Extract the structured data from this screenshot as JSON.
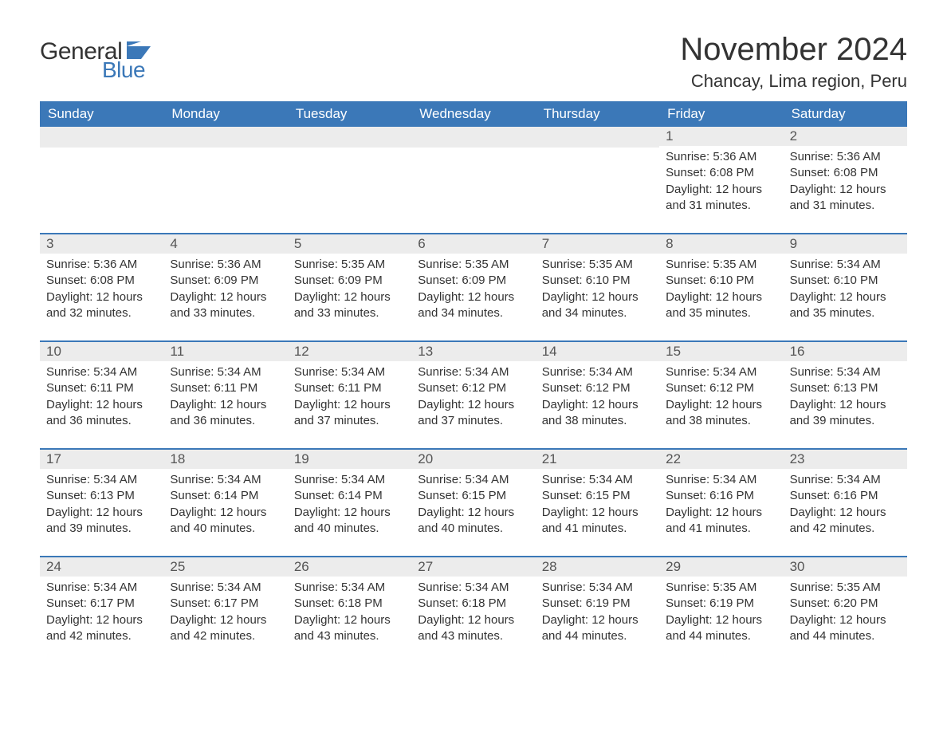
{
  "brand": {
    "part1": "General",
    "part2": "Blue",
    "flag_color": "#3b78b8"
  },
  "title": "November 2024",
  "location": "Chancay, Lima region, Peru",
  "colors": {
    "header_bg": "#3b78b8",
    "header_text": "#ffffff",
    "daynum_bg": "#ececec",
    "daynum_text": "#555555",
    "body_text": "#333333",
    "row_border": "#3b78b8",
    "page_bg": "#ffffff"
  },
  "typography": {
    "title_fontsize": 40,
    "location_fontsize": 22,
    "weekday_fontsize": 17,
    "daynum_fontsize": 17,
    "body_fontsize": 15
  },
  "weekdays": [
    "Sunday",
    "Monday",
    "Tuesday",
    "Wednesday",
    "Thursday",
    "Friday",
    "Saturday"
  ],
  "labels": {
    "sunrise": "Sunrise:",
    "sunset": "Sunset:",
    "daylight": "Daylight:"
  },
  "weeks": [
    [
      null,
      null,
      null,
      null,
      null,
      {
        "n": "1",
        "sunrise": "5:36 AM",
        "sunset": "6:08 PM",
        "daylight": "12 hours and 31 minutes."
      },
      {
        "n": "2",
        "sunrise": "5:36 AM",
        "sunset": "6:08 PM",
        "daylight": "12 hours and 31 minutes."
      }
    ],
    [
      {
        "n": "3",
        "sunrise": "5:36 AM",
        "sunset": "6:08 PM",
        "daylight": "12 hours and 32 minutes."
      },
      {
        "n": "4",
        "sunrise": "5:36 AM",
        "sunset": "6:09 PM",
        "daylight": "12 hours and 33 minutes."
      },
      {
        "n": "5",
        "sunrise": "5:35 AM",
        "sunset": "6:09 PM",
        "daylight": "12 hours and 33 minutes."
      },
      {
        "n": "6",
        "sunrise": "5:35 AM",
        "sunset": "6:09 PM",
        "daylight": "12 hours and 34 minutes."
      },
      {
        "n": "7",
        "sunrise": "5:35 AM",
        "sunset": "6:10 PM",
        "daylight": "12 hours and 34 minutes."
      },
      {
        "n": "8",
        "sunrise": "5:35 AM",
        "sunset": "6:10 PM",
        "daylight": "12 hours and 35 minutes."
      },
      {
        "n": "9",
        "sunrise": "5:34 AM",
        "sunset": "6:10 PM",
        "daylight": "12 hours and 35 minutes."
      }
    ],
    [
      {
        "n": "10",
        "sunrise": "5:34 AM",
        "sunset": "6:11 PM",
        "daylight": "12 hours and 36 minutes."
      },
      {
        "n": "11",
        "sunrise": "5:34 AM",
        "sunset": "6:11 PM",
        "daylight": "12 hours and 36 minutes."
      },
      {
        "n": "12",
        "sunrise": "5:34 AM",
        "sunset": "6:11 PM",
        "daylight": "12 hours and 37 minutes."
      },
      {
        "n": "13",
        "sunrise": "5:34 AM",
        "sunset": "6:12 PM",
        "daylight": "12 hours and 37 minutes."
      },
      {
        "n": "14",
        "sunrise": "5:34 AM",
        "sunset": "6:12 PM",
        "daylight": "12 hours and 38 minutes."
      },
      {
        "n": "15",
        "sunrise": "5:34 AM",
        "sunset": "6:12 PM",
        "daylight": "12 hours and 38 minutes."
      },
      {
        "n": "16",
        "sunrise": "5:34 AM",
        "sunset": "6:13 PM",
        "daylight": "12 hours and 39 minutes."
      }
    ],
    [
      {
        "n": "17",
        "sunrise": "5:34 AM",
        "sunset": "6:13 PM",
        "daylight": "12 hours and 39 minutes."
      },
      {
        "n": "18",
        "sunrise": "5:34 AM",
        "sunset": "6:14 PM",
        "daylight": "12 hours and 40 minutes."
      },
      {
        "n": "19",
        "sunrise": "5:34 AM",
        "sunset": "6:14 PM",
        "daylight": "12 hours and 40 minutes."
      },
      {
        "n": "20",
        "sunrise": "5:34 AM",
        "sunset": "6:15 PM",
        "daylight": "12 hours and 40 minutes."
      },
      {
        "n": "21",
        "sunrise": "5:34 AM",
        "sunset": "6:15 PM",
        "daylight": "12 hours and 41 minutes."
      },
      {
        "n": "22",
        "sunrise": "5:34 AM",
        "sunset": "6:16 PM",
        "daylight": "12 hours and 41 minutes."
      },
      {
        "n": "23",
        "sunrise": "5:34 AM",
        "sunset": "6:16 PM",
        "daylight": "12 hours and 42 minutes."
      }
    ],
    [
      {
        "n": "24",
        "sunrise": "5:34 AM",
        "sunset": "6:17 PM",
        "daylight": "12 hours and 42 minutes."
      },
      {
        "n": "25",
        "sunrise": "5:34 AM",
        "sunset": "6:17 PM",
        "daylight": "12 hours and 42 minutes."
      },
      {
        "n": "26",
        "sunrise": "5:34 AM",
        "sunset": "6:18 PM",
        "daylight": "12 hours and 43 minutes."
      },
      {
        "n": "27",
        "sunrise": "5:34 AM",
        "sunset": "6:18 PM",
        "daylight": "12 hours and 43 minutes."
      },
      {
        "n": "28",
        "sunrise": "5:34 AM",
        "sunset": "6:19 PM",
        "daylight": "12 hours and 44 minutes."
      },
      {
        "n": "29",
        "sunrise": "5:35 AM",
        "sunset": "6:19 PM",
        "daylight": "12 hours and 44 minutes."
      },
      {
        "n": "30",
        "sunrise": "5:35 AM",
        "sunset": "6:20 PM",
        "daylight": "12 hours and 44 minutes."
      }
    ]
  ]
}
